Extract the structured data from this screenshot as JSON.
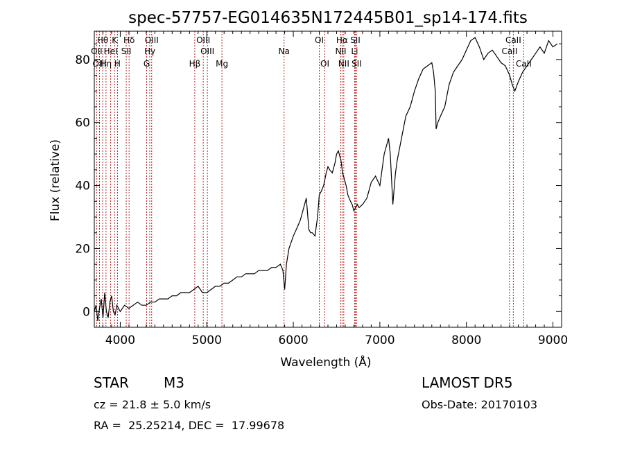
{
  "chart_data": {
    "type": "line",
    "title": "spec-57757-EG014635N172445B01_sp14-174.fits",
    "xlabel": "Wavelength (Å)",
    "ylabel": "Flux (relative)",
    "xlim": [
      3700,
      9100
    ],
    "ylim": [
      -5,
      89
    ],
    "xticks": [
      4000,
      5000,
      6000,
      7000,
      8000,
      9000
    ],
    "yticks": [
      0,
      20,
      40,
      60,
      80
    ],
    "grid": false,
    "line_color": "#000000",
    "marker_color": "#b22222",
    "series": [
      {
        "x": [
          3700,
          3720,
          3740,
          3760,
          3780,
          3800,
          3820,
          3840,
          3860,
          3880,
          3900,
          3920,
          3940,
          3960,
          3980,
          4000,
          4050,
          4100,
          4150,
          4200,
          4250,
          4300,
          4350,
          4400,
          4450,
          4500,
          4550,
          4600,
          4650,
          4700,
          4750,
          4800,
          4850,
          4900,
          4950,
          5000,
          5050,
          5100,
          5150,
          5200,
          5250,
          5300,
          5350,
          5400,
          5450,
          5500,
          5550,
          5600,
          5650,
          5700,
          5750,
          5800,
          5850,
          5880,
          5900,
          5920,
          5950,
          6000,
          6050,
          6080,
          6100,
          6130,
          6150,
          6180,
          6200,
          6220,
          6250,
          6280,
          6300,
          6320,
          6350,
          6380,
          6400,
          6420,
          6450,
          6480,
          6500,
          6520,
          6550,
          6570,
          6590,
          6610,
          6630,
          6660,
          6680,
          6700,
          6720,
          6740,
          6760,
          6800,
          6850,
          6900,
          6950,
          7000,
          7050,
          7080,
          7100,
          7120,
          7150,
          7180,
          7200,
          7250,
          7300,
          7350,
          7400,
          7450,
          7500,
          7550,
          7600,
          7620,
          7640,
          7650,
          7670,
          7700,
          7750,
          7800,
          7850,
          7900,
          7950,
          8000,
          8050,
          8100,
          8150,
          8200,
          8250,
          8300,
          8350,
          8400,
          8450,
          8500,
          8530,
          8560,
          8600,
          8650,
          8700,
          8750,
          8800,
          8850,
          8900,
          8950,
          9000,
          9050
        ],
        "y": [
          0,
          2,
          -3,
          1,
          4,
          -2,
          6,
          0,
          -2,
          3,
          5,
          0,
          -1,
          2,
          1,
          0,
          2,
          1,
          2,
          3,
          2,
          2,
          3,
          3,
          4,
          4,
          4,
          5,
          5,
          6,
          6,
          6,
          7,
          8,
          6,
          6,
          7,
          8,
          8,
          9,
          9,
          10,
          11,
          11,
          12,
          12,
          12,
          13,
          13,
          13,
          14,
          14,
          15,
          13,
          7,
          15,
          20,
          24,
          27,
          29,
          31,
          34,
          36,
          26,
          25,
          25,
          24,
          30,
          37,
          38,
          40,
          44,
          46,
          45,
          44,
          47,
          50,
          51,
          48,
          44,
          42,
          40,
          37,
          35,
          34,
          32,
          33,
          34,
          33,
          34,
          36,
          41,
          43,
          40,
          50,
          53,
          55,
          50,
          34,
          44,
          48,
          55,
          62,
          65,
          70,
          74,
          77,
          78,
          79,
          76,
          70,
          58,
          60,
          62,
          65,
          72,
          76,
          78,
          80,
          83,
          86,
          87,
          84,
          80,
          82,
          83,
          81,
          79,
          78,
          75,
          72,
          70,
          73,
          76,
          78,
          80,
          82,
          84,
          82,
          86,
          84,
          85
        ]
      }
    ],
    "line_markers": [
      {
        "label": "Hθ",
        "x": 3797,
        "row": 1
      },
      {
        "label": "OII",
        "x": 3727,
        "row": 2
      },
      {
        "label": "OIII",
        "x": 3760,
        "row": 3
      },
      {
        "label": "K",
        "x": 3934,
        "row": 1
      },
      {
        "label": "HeI",
        "x": 3889,
        "row": 2
      },
      {
        "label": "Hη",
        "x": 3835,
        "row": 3
      },
      {
        "label": "Hδ",
        "x": 4102,
        "row": 1
      },
      {
        "label": "SII",
        "x": 4069,
        "row": 2
      },
      {
        "label": "H",
        "x": 3968,
        "row": 3
      },
      {
        "label": "OIII",
        "x": 4363,
        "row": 1
      },
      {
        "label": "Hγ",
        "x": 4341,
        "row": 2
      },
      {
        "label": "G",
        "x": 4305,
        "row": 3
      },
      {
        "label": "OIII",
        "x": 4959,
        "row": 1
      },
      {
        "label": "OIII",
        "x": 5007,
        "row": 2
      },
      {
        "label": "Hβ",
        "x": 4861,
        "row": 3
      },
      {
        "label": "Mg",
        "x": 5175,
        "row": 3
      },
      {
        "label": "Na",
        "x": 5893,
        "row": 2
      },
      {
        "label": "OI",
        "x": 6300,
        "row": 1
      },
      {
        "label": "OI",
        "x": 6364,
        "row": 3
      },
      {
        "label": "Hα",
        "x": 6563,
        "row": 1
      },
      {
        "label": "NII",
        "x": 6548,
        "row": 2
      },
      {
        "label": "NII",
        "x": 6583,
        "row": 3
      },
      {
        "label": "SII",
        "x": 6716,
        "row": 1
      },
      {
        "label": "Li",
        "x": 6708,
        "row": 2
      },
      {
        "label": "SII",
        "x": 6731,
        "row": 3
      },
      {
        "label": "CaII",
        "x": 8542,
        "row": 1
      },
      {
        "label": "CaII",
        "x": 8498,
        "row": 2
      },
      {
        "label": "CaII",
        "x": 8662,
        "row": 3
      }
    ]
  },
  "info": {
    "object_class": "STAR",
    "subclass": "M3",
    "cz": "cz = 21.8 ± 5.0 km/s",
    "coords": "RA =  25.25214, DEC =  17.99678",
    "survey": "LAMOST DR5",
    "obs_date": "Obs-Date: 20170103"
  }
}
